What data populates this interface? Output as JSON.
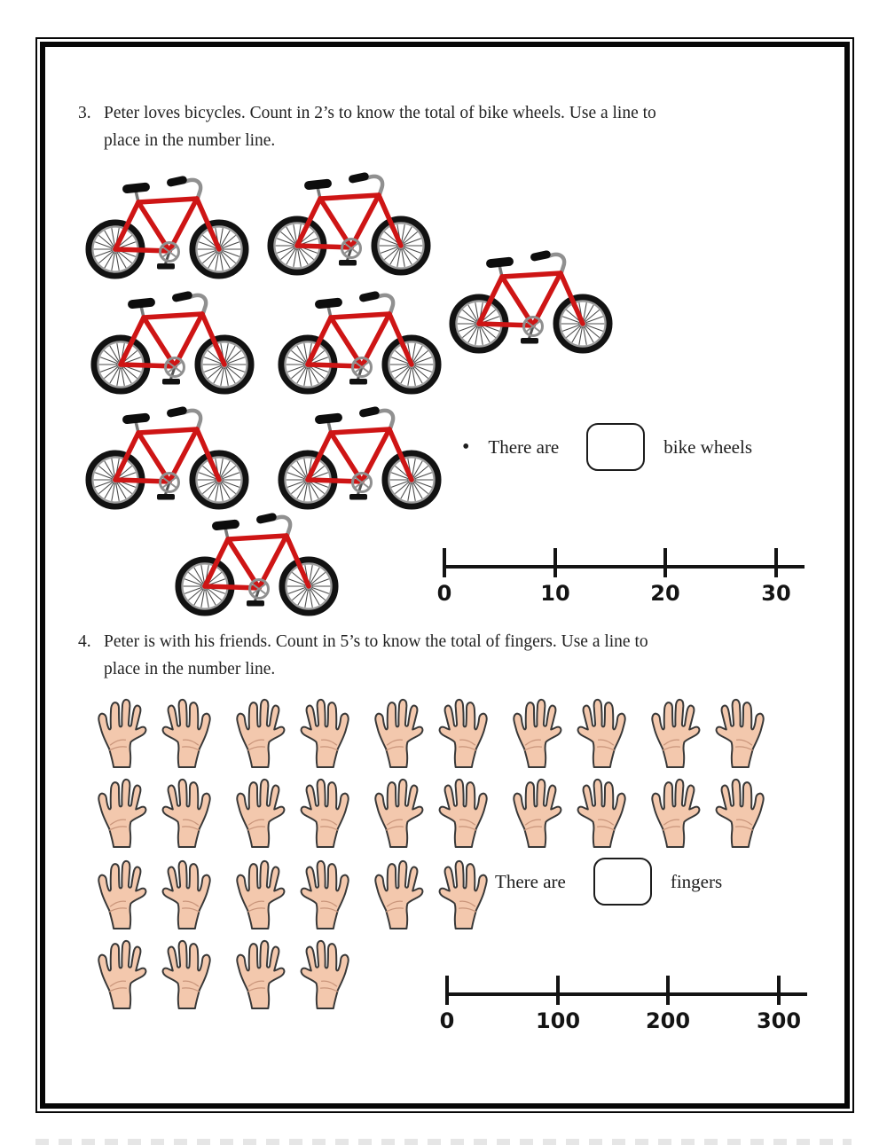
{
  "p3": {
    "number": "3.",
    "line1": "Peter loves bicycles. Count in 2’s to know the total of bike wheels. Use a line to",
    "line2": "place in the number line.",
    "bullet": "•",
    "prompt_prefix": "There are",
    "prompt_suffix": "bike wheels",
    "answer_value": "",
    "bike_count": 8,
    "wheels_per_bike": 2,
    "number_line": {
      "min": 0,
      "max": 30,
      "step": 10,
      "ticks": [
        "0",
        "10",
        "20",
        "30"
      ]
    }
  },
  "p4": {
    "number": "4.",
    "line1": "Peter is with his friends. Count in 5’s to know the total of fingers.  Use a line to",
    "line2": "place in the number line.",
    "prompt_prefix": "There are",
    "prompt_suffix": "fingers",
    "answer_value": "",
    "hand_rows": [
      10,
      10,
      6,
      4
    ],
    "hand_count": 30,
    "fingers_per_hand": 5,
    "number_line": {
      "min": 0,
      "max": 300,
      "step": 100,
      "ticks": [
        "0",
        "100",
        "200",
        "300"
      ]
    }
  },
  "colors": {
    "page_border": "#070707",
    "bike_frame_red": "#ce1515",
    "tire_black": "#121212",
    "rim_gray": "#9b9b9b",
    "hand_skin": "#f3c8ad",
    "hand_outline": "#383838",
    "text": "#222222",
    "number_line": "#141414"
  }
}
